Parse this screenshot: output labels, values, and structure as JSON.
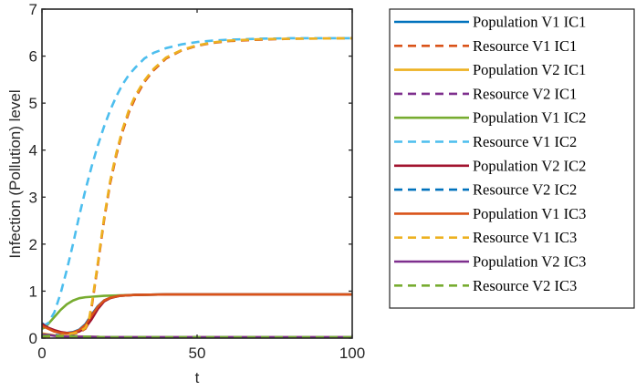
{
  "chart_data": {
    "type": "line",
    "xlabel": "t",
    "ylabel": "Infection (Pollution) level",
    "xlim": [
      0,
      100
    ],
    "ylim": [
      0,
      7
    ],
    "xticks": [
      0,
      50,
      100
    ],
    "yticks": [
      0,
      1,
      2,
      3,
      4,
      5,
      6,
      7
    ],
    "grid": false,
    "legend_position": "outside-right",
    "series": [
      {
        "name": "Population V1 IC1",
        "color": "#0072BD",
        "style": "solid",
        "x": [
          0,
          2,
          4,
          6,
          8,
          10,
          12,
          14,
          16,
          18,
          20,
          22,
          25,
          30,
          40,
          60,
          80,
          100
        ],
        "y": [
          0.32,
          0.22,
          0.15,
          0.12,
          0.11,
          0.13,
          0.18,
          0.3,
          0.5,
          0.68,
          0.8,
          0.86,
          0.9,
          0.92,
          0.93,
          0.93,
          0.93,
          0.93
        ]
      },
      {
        "name": "Resource V1 IC1",
        "color": "#D95319",
        "style": "dashed",
        "x": [
          0,
          4,
          8,
          12,
          14,
          15,
          16,
          18,
          20,
          22,
          24,
          26,
          28,
          30,
          33,
          36,
          40,
          45,
          50,
          55,
          60,
          70,
          80,
          100
        ],
        "y": [
          0.02,
          0.03,
          0.06,
          0.12,
          0.2,
          0.32,
          0.65,
          1.55,
          2.5,
          3.3,
          3.9,
          4.4,
          4.8,
          5.1,
          5.45,
          5.7,
          5.95,
          6.12,
          6.22,
          6.28,
          6.32,
          6.35,
          6.37,
          6.38
        ]
      },
      {
        "name": "Population V2 IC1",
        "color": "#EDB120",
        "style": "solid",
        "x": [
          0,
          2,
          4,
          6,
          10,
          15,
          20,
          30,
          50,
          100
        ],
        "y": [
          0.1,
          0.08,
          0.06,
          0.05,
          0.04,
          0.03,
          0.02,
          0.02,
          0.02,
          0.02
        ]
      },
      {
        "name": "Resource V2 IC1",
        "color": "#7E2F8E",
        "style": "dashed",
        "x": [
          0,
          3,
          6,
          10,
          15,
          20,
          30,
          50,
          100
        ],
        "y": [
          0.05,
          0.06,
          0.05,
          0.04,
          0.03,
          0.02,
          0.02,
          0.02,
          0.02
        ]
      },
      {
        "name": "Population V1 IC2",
        "color": "#77AC30",
        "style": "solid",
        "x": [
          0,
          1,
          2,
          4,
          6,
          8,
          10,
          12,
          14,
          16,
          20,
          25,
          30,
          40,
          60,
          80,
          100
        ],
        "y": [
          0.2,
          0.23,
          0.3,
          0.45,
          0.6,
          0.72,
          0.8,
          0.85,
          0.87,
          0.88,
          0.9,
          0.91,
          0.92,
          0.93,
          0.93,
          0.93,
          0.93
        ]
      },
      {
        "name": "Resource V1 IC2",
        "color": "#4DBEEE",
        "style": "dashed",
        "x": [
          0,
          2,
          4,
          6,
          8,
          10,
          12,
          14,
          16,
          18,
          20,
          22,
          24,
          26,
          28,
          30,
          33,
          36,
          40,
          45,
          50,
          55,
          60,
          70,
          80,
          100
        ],
        "y": [
          0.25,
          0.32,
          0.55,
          0.95,
          1.45,
          2.0,
          2.6,
          3.15,
          3.65,
          4.1,
          4.5,
          4.85,
          5.15,
          5.4,
          5.6,
          5.75,
          5.95,
          6.07,
          6.17,
          6.25,
          6.3,
          6.33,
          6.35,
          6.37,
          6.38,
          6.38
        ]
      },
      {
        "name": "Population V2 IC2",
        "color": "#A2142F",
        "style": "solid",
        "x": [
          0,
          2,
          4,
          6,
          8,
          10,
          12,
          14,
          16,
          18,
          20,
          22,
          25,
          30,
          40,
          60,
          80,
          100
        ],
        "y": [
          0.3,
          0.22,
          0.17,
          0.13,
          0.11,
          0.11,
          0.14,
          0.22,
          0.4,
          0.62,
          0.78,
          0.85,
          0.9,
          0.92,
          0.93,
          0.93,
          0.93,
          0.93
        ]
      },
      {
        "name": "Resource V2 IC2",
        "color": "#0072BD",
        "style": "dashed",
        "x": [
          0,
          3,
          6,
          10,
          15,
          20,
          30,
          50,
          100
        ],
        "y": [
          0.06,
          0.07,
          0.06,
          0.04,
          0.03,
          0.02,
          0.02,
          0.02,
          0.02
        ]
      },
      {
        "name": "Population V1 IC3",
        "color": "#D95319",
        "style": "solid",
        "x": [
          0,
          2,
          4,
          6,
          8,
          10,
          12,
          14,
          16,
          18,
          20,
          22,
          25,
          30,
          40,
          60,
          80,
          100
        ],
        "y": [
          0.26,
          0.2,
          0.14,
          0.11,
          0.1,
          0.12,
          0.17,
          0.28,
          0.48,
          0.67,
          0.8,
          0.86,
          0.9,
          0.92,
          0.93,
          0.93,
          0.93,
          0.93
        ]
      },
      {
        "name": "Resource V1 IC3",
        "color": "#EDB120",
        "style": "dashed",
        "x": [
          0,
          4,
          8,
          12,
          14,
          15,
          16,
          18,
          20,
          22,
          24,
          26,
          28,
          30,
          33,
          36,
          40,
          45,
          50,
          55,
          60,
          70,
          80,
          100
        ],
        "y": [
          0.03,
          0.04,
          0.07,
          0.13,
          0.22,
          0.35,
          0.7,
          1.6,
          2.55,
          3.35,
          3.95,
          4.45,
          4.85,
          5.15,
          5.48,
          5.73,
          5.97,
          6.13,
          6.23,
          6.29,
          6.33,
          6.36,
          6.37,
          6.38
        ]
      },
      {
        "name": "Population V2 IC3",
        "color": "#7E2F8E",
        "style": "solid",
        "x": [
          0,
          2,
          4,
          6,
          10,
          15,
          20,
          30,
          50,
          100
        ],
        "y": [
          0.08,
          0.07,
          0.05,
          0.04,
          0.03,
          0.03,
          0.02,
          0.02,
          0.02,
          0.02
        ]
      },
      {
        "name": "Resource V2 IC3",
        "color": "#77AC30",
        "style": "dashed",
        "x": [
          0,
          3,
          6,
          10,
          15,
          20,
          30,
          50,
          100
        ],
        "y": [
          0.04,
          0.05,
          0.04,
          0.03,
          0.03,
          0.02,
          0.02,
          0.02,
          0.02
        ]
      }
    ]
  }
}
